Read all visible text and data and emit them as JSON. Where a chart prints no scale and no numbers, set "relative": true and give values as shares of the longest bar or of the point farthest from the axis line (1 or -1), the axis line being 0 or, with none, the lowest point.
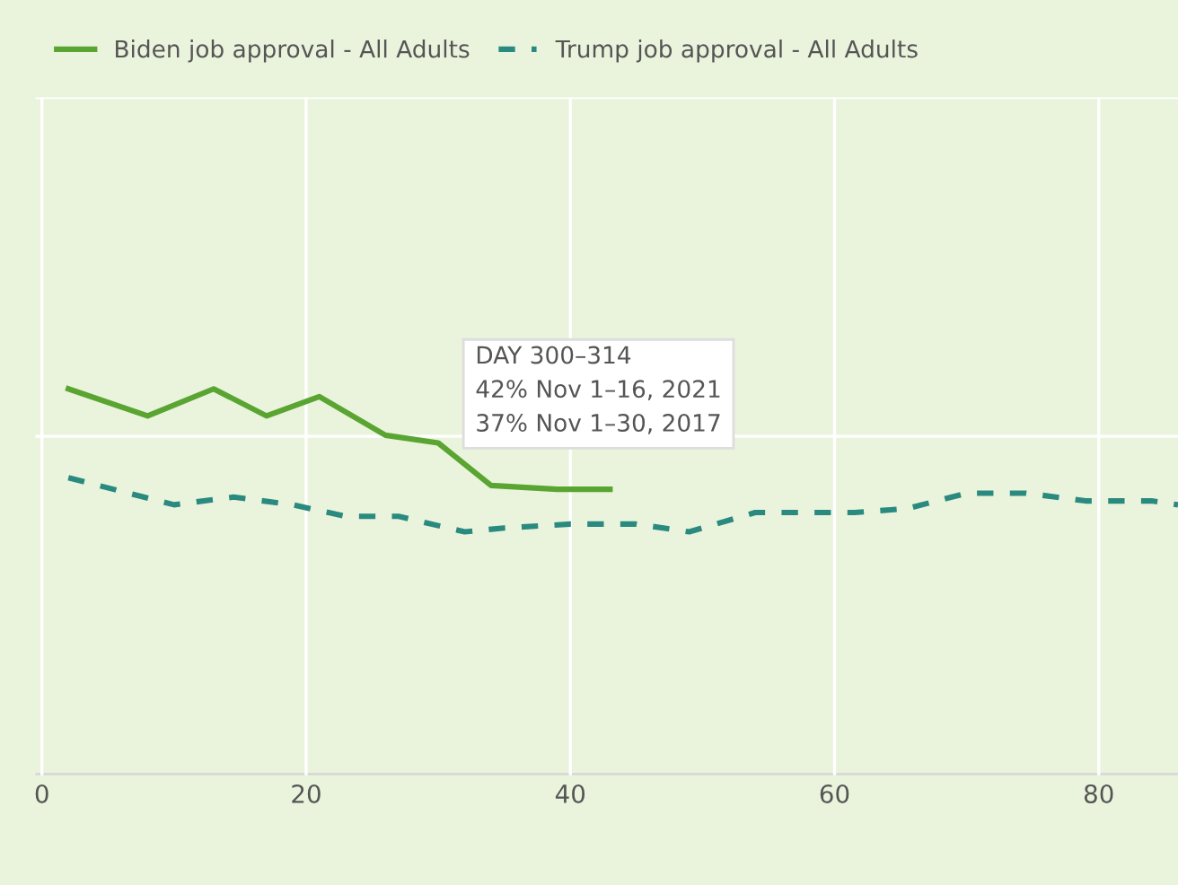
{
  "chart_data": {
    "type": "line",
    "relative": true,
    "series": [
      {
        "name": "Biden job approval - All Adults",
        "color": "#5aa532",
        "line_style": "solid",
        "x": [
          2,
          8,
          13,
          17,
          21,
          26,
          30,
          34,
          39,
          43
        ],
        "values": [
          1,
          0.93,
          1,
          0.93,
          0.98,
          0.88,
          0.86,
          0.75,
          0.74,
          0.74
        ]
      },
      {
        "name": "Trump job approval - All Adults",
        "color": "#2a8a80",
        "line_style": "dashed",
        "x": [
          2,
          10,
          14.5,
          19,
          23,
          27,
          32,
          35,
          40,
          45,
          49,
          54,
          57,
          61.5,
          65.5,
          70,
          74.5,
          79,
          84,
          86
        ],
        "values": [
          0.77,
          0.7,
          0.72,
          0.7,
          0.67,
          0.67,
          0.63,
          0.64,
          0.65,
          0.65,
          0.63,
          0.68,
          0.68,
          0.68,
          0.69,
          0.73,
          0.73,
          0.71,
          0.71,
          0.7
        ]
      }
    ],
    "xlim": [
      -0.5,
      86
    ],
    "xticks": [
      0,
      20,
      40,
      60,
      80
    ],
    "tick_labels": "x",
    "grid": true,
    "legend": "top left",
    "marker": "none",
    "annotations": [
      "DAY 300–314",
      "42% Nov 1–16, 2021",
      "37% Nov 1–30, 2017"
    ]
  }
}
